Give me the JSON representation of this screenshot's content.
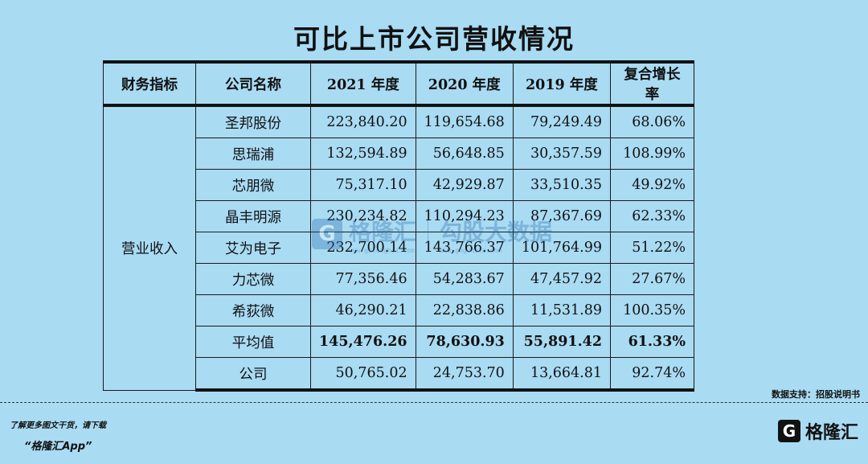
{
  "title": "可比上市公司营收情况",
  "table": {
    "headers": [
      "财务指标",
      "公司名称",
      "2021 年度",
      "2020 年度",
      "2019 年度",
      "复合增长率"
    ],
    "metric": "营业收入",
    "rows": [
      {
        "name": "圣邦股份",
        "y2021": "223,840.20",
        "y2020": "119,654.68",
        "y2019": "79,249.49",
        "cagr": "68.06%"
      },
      {
        "name": "思瑞浦",
        "y2021": "132,594.89",
        "y2020": "56,648.85",
        "y2019": "30,357.59",
        "cagr": "108.99%"
      },
      {
        "name": "芯朋微",
        "y2021": "75,317.10",
        "y2020": "42,929.87",
        "y2019": "33,510.35",
        "cagr": "49.92%"
      },
      {
        "name": "晶丰明源",
        "y2021": "230,234.82",
        "y2020": "110,294.23",
        "y2019": "87,367.69",
        "cagr": "62.33%"
      },
      {
        "name": "艾为电子",
        "y2021": "232,700.14",
        "y2020": "143,766.37",
        "y2019": "101,764.99",
        "cagr": "51.22%"
      },
      {
        "name": "力芯微",
        "y2021": "77,356.46",
        "y2020": "54,283.67",
        "y2019": "47,457.92",
        "cagr": "27.67%"
      },
      {
        "name": "希荻微",
        "y2021": "46,290.21",
        "y2020": "22,838.86",
        "y2019": "11,531.89",
        "cagr": "100.35%"
      },
      {
        "name": "平均值",
        "y2021": "145,476.26",
        "y2020": "78,630.93",
        "y2019": "55,891.42",
        "cagr": "61.33%"
      },
      {
        "name": "公司",
        "y2021": "50,765.02",
        "y2020": "24,753.70",
        "y2019": "13,664.81",
        "cagr": "92.74%"
      }
    ]
  },
  "watermark": {
    "brand": "格隆汇",
    "brand_url": "www.gelonghui.com",
    "tagline": "勾股大数据",
    "tagline_url": "www.gogudata.com"
  },
  "source": "数据支持：招股说明书",
  "promo": {
    "line1": "了解更多图文干货，请下载",
    "line2": "“格隆汇App”"
  },
  "logo": {
    "letter": "G",
    "text": "格隆汇"
  }
}
